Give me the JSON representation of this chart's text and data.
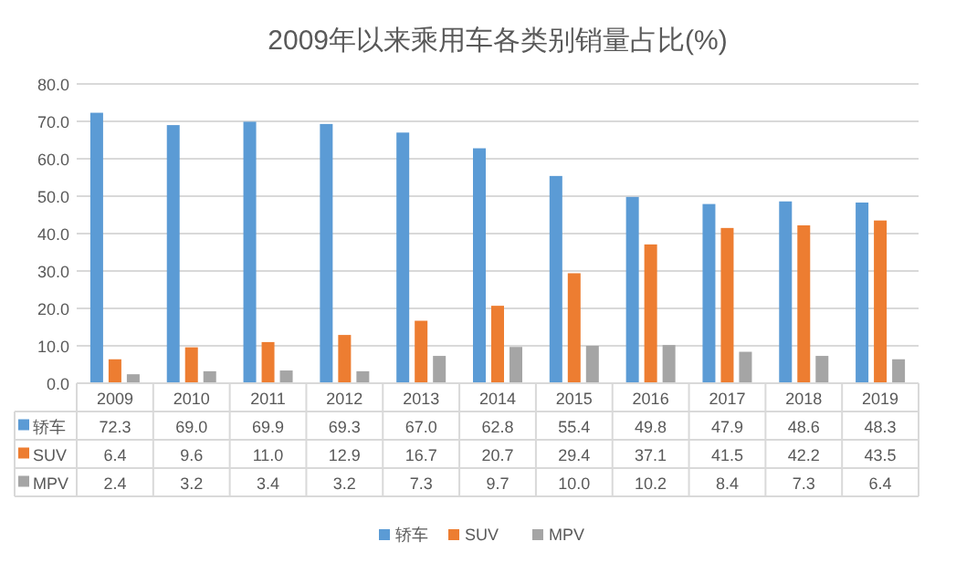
{
  "chart_data": {
    "type": "bar",
    "title": "2009年以来乘用车各类别销量占比(%)",
    "categories": [
      "2009",
      "2010",
      "2011",
      "2012",
      "2013",
      "2014",
      "2015",
      "2016",
      "2017",
      "2018",
      "2019"
    ],
    "series": [
      {
        "name": "轿车",
        "color": "#5b9bd5",
        "values": [
          72.3,
          69.0,
          69.9,
          69.3,
          67.0,
          62.8,
          55.4,
          49.8,
          47.9,
          48.6,
          48.3
        ],
        "value_labels": [
          "72.3",
          "69.0",
          "69.9",
          "69.3",
          "67.0",
          "62.8",
          "55.4",
          "49.8",
          "47.9",
          "48.6",
          "48.3"
        ]
      },
      {
        "name": "SUV",
        "color": "#ed7d31",
        "values": [
          6.4,
          9.6,
          11.0,
          12.9,
          16.7,
          20.7,
          29.4,
          37.1,
          41.5,
          42.2,
          43.5
        ],
        "value_labels": [
          "6.4",
          "9.6",
          "11.0",
          "12.9",
          "16.7",
          "20.7",
          "29.4",
          "37.1",
          "41.5",
          "42.2",
          "43.5"
        ]
      },
      {
        "name": "MPV",
        "color": "#a5a5a5",
        "values": [
          2.4,
          3.2,
          3.4,
          3.2,
          7.3,
          9.7,
          10.0,
          10.2,
          8.4,
          7.3,
          6.4
        ],
        "value_labels": [
          "2.4",
          "3.2",
          "3.4",
          "3.2",
          "7.3",
          "9.7",
          "10.0",
          "10.2",
          "8.4",
          "7.3",
          "6.4"
        ]
      }
    ],
    "ylim": [
      0,
      80
    ],
    "yticks": [
      {
        "value": 0,
        "label": "0.0"
      },
      {
        "value": 10,
        "label": "10.0"
      },
      {
        "value": 20,
        "label": "20.0"
      },
      {
        "value": 30,
        "label": "30.0"
      },
      {
        "value": 40,
        "label": "40.0"
      },
      {
        "value": 50,
        "label": "50.0"
      },
      {
        "value": 60,
        "label": "60.0"
      },
      {
        "value": 70,
        "label": "70.0"
      },
      {
        "value": 80,
        "label": "80.0"
      }
    ],
    "grid": "y",
    "legend": "bottom"
  }
}
